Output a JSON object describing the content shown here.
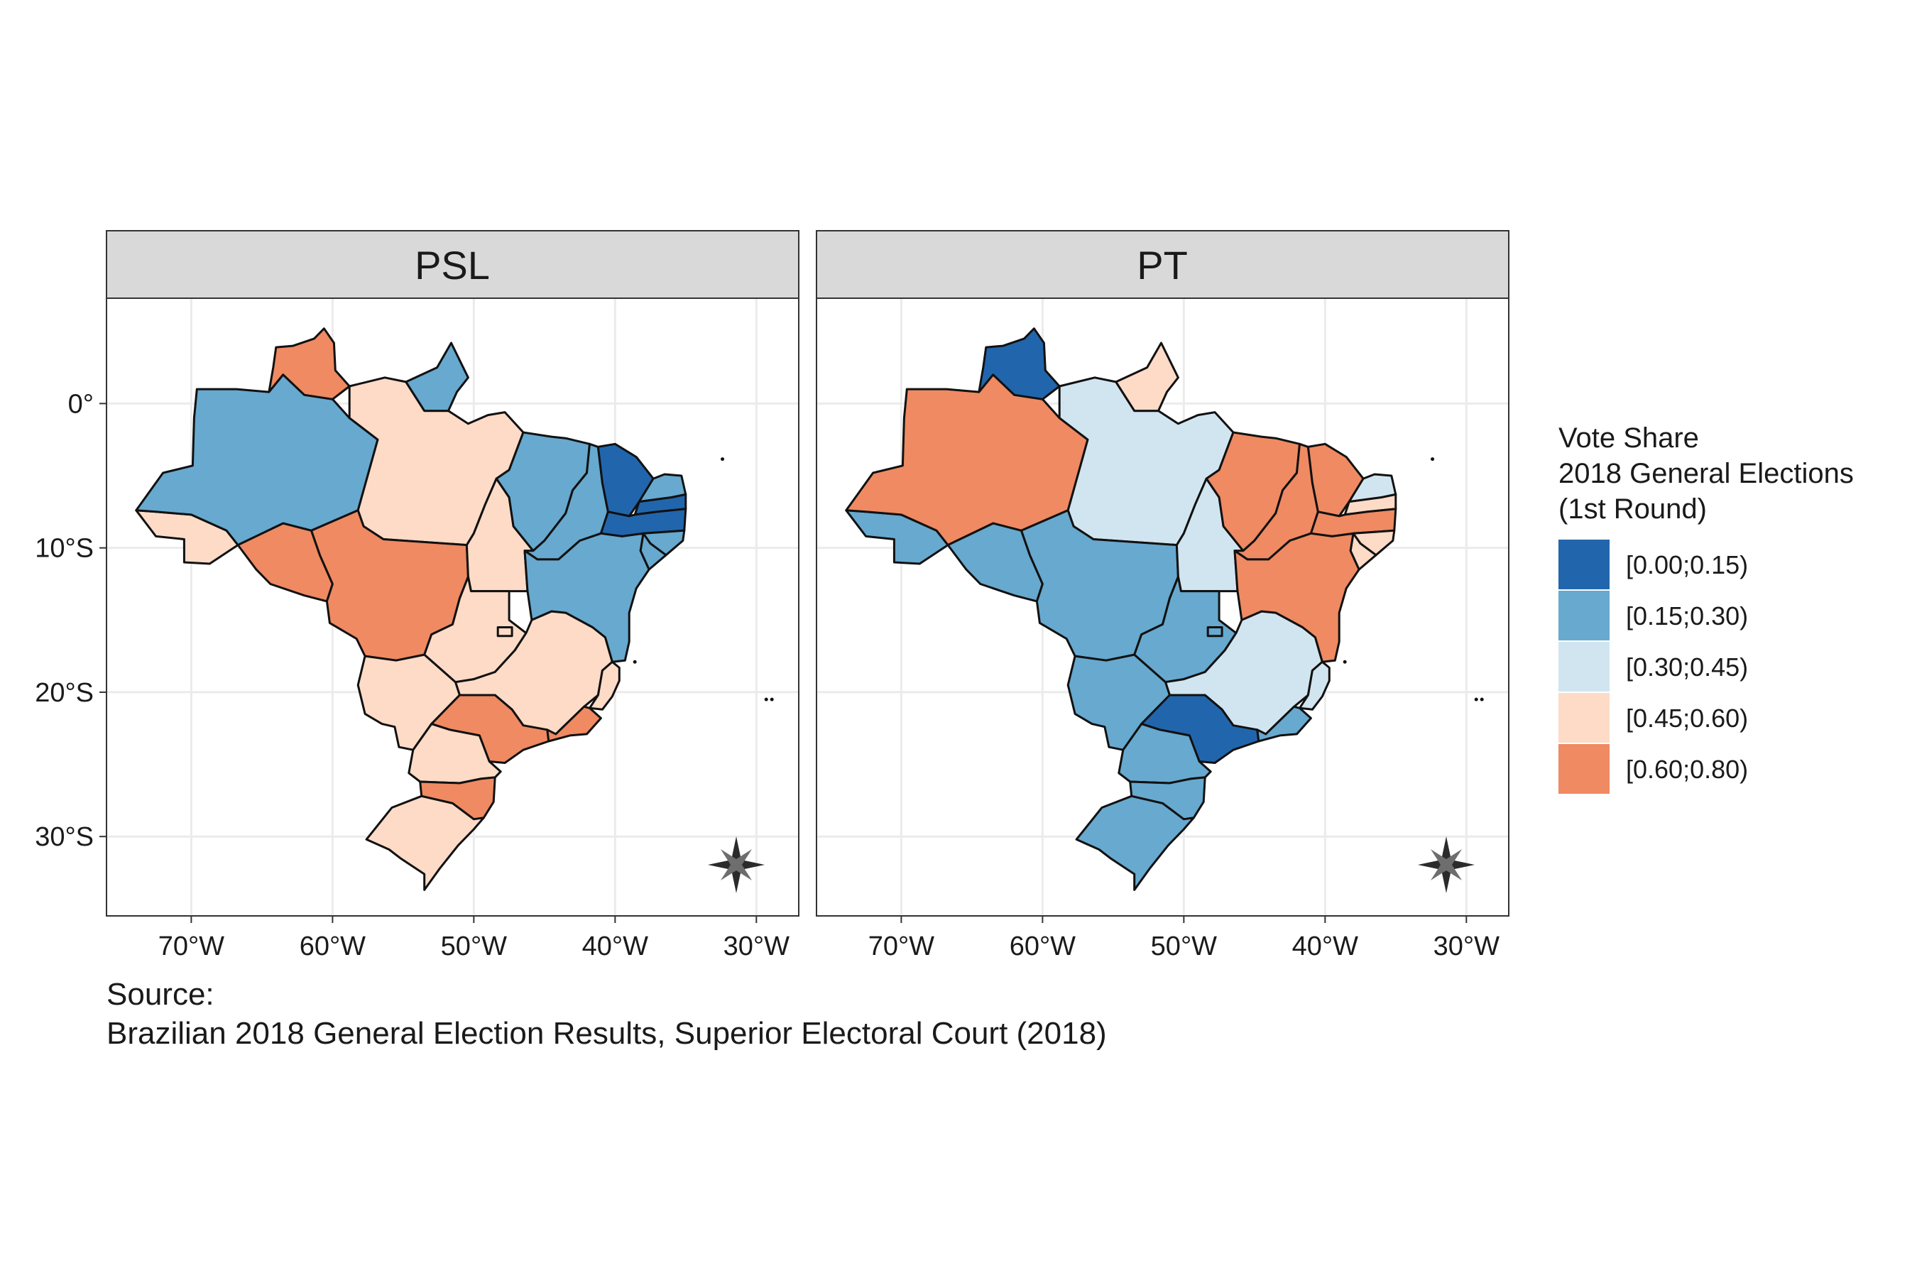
{
  "chart_data": {
    "type": "choropleth-map",
    "panels": [
      {
        "title": "PSL",
        "regions": [
          {
            "region": "Acre",
            "class": 4
          },
          {
            "region": "Amazonas",
            "class": 2
          },
          {
            "region": "Roraima",
            "class": 5
          },
          {
            "region": "Pará",
            "class": 4
          },
          {
            "region": "Amapá",
            "class": 2
          },
          {
            "region": "Rondônia",
            "class": 5
          },
          {
            "region": "Mato Grosso",
            "class": 5
          },
          {
            "region": "Tocantins",
            "class": 4
          },
          {
            "region": "Maranhão",
            "class": 2
          },
          {
            "region": "Piauí",
            "class": 2
          },
          {
            "region": "Ceará",
            "class": 1
          },
          {
            "region": "Rio Grande do Norte",
            "class": 2
          },
          {
            "region": "Paraíba",
            "class": 1
          },
          {
            "region": "Pernambuco",
            "class": 1
          },
          {
            "region": "Alagoas",
            "class": 2
          },
          {
            "region": "Sergipe",
            "class": 2
          },
          {
            "region": "Bahia",
            "class": 2
          },
          {
            "region": "Goiás",
            "class": 4
          },
          {
            "region": "Distrito Federal",
            "class": 4
          },
          {
            "region": "Minas Gerais",
            "class": 4
          },
          {
            "region": "Espírito Santo",
            "class": 4
          },
          {
            "region": "Mato Grosso do Sul",
            "class": 4
          },
          {
            "region": "São Paulo",
            "class": 5
          },
          {
            "region": "Rio de Janeiro",
            "class": 5
          },
          {
            "region": "Paraná",
            "class": 4
          },
          {
            "region": "Santa Catarina",
            "class": 5
          },
          {
            "region": "Rio Grande do Sul",
            "class": 4
          }
        ]
      },
      {
        "title": "PT",
        "regions": [
          {
            "region": "Acre",
            "class": 2
          },
          {
            "region": "Amazonas",
            "class": 5
          },
          {
            "region": "Roraima",
            "class": 1
          },
          {
            "region": "Pará",
            "class": 3
          },
          {
            "region": "Amapá",
            "class": 4
          },
          {
            "region": "Rondônia",
            "class": 2
          },
          {
            "region": "Mato Grosso",
            "class": 2
          },
          {
            "region": "Tocantins",
            "class": 3
          },
          {
            "region": "Maranhão",
            "class": 5
          },
          {
            "region": "Piauí",
            "class": 5
          },
          {
            "region": "Ceará",
            "class": 5
          },
          {
            "region": "Rio Grande do Norte",
            "class": 3
          },
          {
            "region": "Paraíba",
            "class": 4
          },
          {
            "region": "Pernambuco",
            "class": 5
          },
          {
            "region": "Alagoas",
            "class": 4
          },
          {
            "region": "Sergipe",
            "class": 4
          },
          {
            "region": "Bahia",
            "class": 5
          },
          {
            "region": "Goiás",
            "class": 2
          },
          {
            "region": "Distrito Federal",
            "class": 2
          },
          {
            "region": "Minas Gerais",
            "class": 3
          },
          {
            "region": "Espírito Santo",
            "class": 3
          },
          {
            "region": "Mato Grosso do Sul",
            "class": 2
          },
          {
            "region": "São Paulo",
            "class": 1
          },
          {
            "region": "Rio de Janeiro",
            "class": 2
          },
          {
            "region": "Paraná",
            "class": 2
          },
          {
            "region": "Santa Catarina",
            "class": 2
          },
          {
            "region": "Rio Grande do Sul",
            "class": 2
          }
        ]
      }
    ],
    "x_ticks": [
      -70,
      -60,
      -50,
      -40,
      -30
    ],
    "x_tick_labels": [
      "70°W",
      "60°W",
      "50°W",
      "40°W",
      "30°W"
    ],
    "y_ticks": [
      0,
      -10,
      -20,
      -30
    ],
    "y_tick_labels": [
      "0°",
      "10°S",
      "20°S",
      "30°S"
    ],
    "xlim": [
      -76,
      -27
    ],
    "ylim": [
      -35.5,
      7.3
    ],
    "grid": true,
    "legend": {
      "title_lines": [
        "Vote Share",
        "2018 General Elections",
        "(1st Round)"
      ],
      "position": "right",
      "items": [
        {
          "label": "[0.00;0.15)",
          "color": "#2166ac"
        },
        {
          "label": "[0.15;0.30)",
          "color": "#67a9cf"
        },
        {
          "label": "[0.30;0.45)",
          "color": "#d1e5f0"
        },
        {
          "label": "[0.45;0.60)",
          "color": "#fddbc7"
        },
        {
          "label": "[0.60;0.80)",
          "color": "#ef8a62"
        }
      ]
    },
    "caption_lines": [
      "Source:",
      "Brazilian 2018 General Election Results, Superior Electoral Court (2018)"
    ]
  }
}
